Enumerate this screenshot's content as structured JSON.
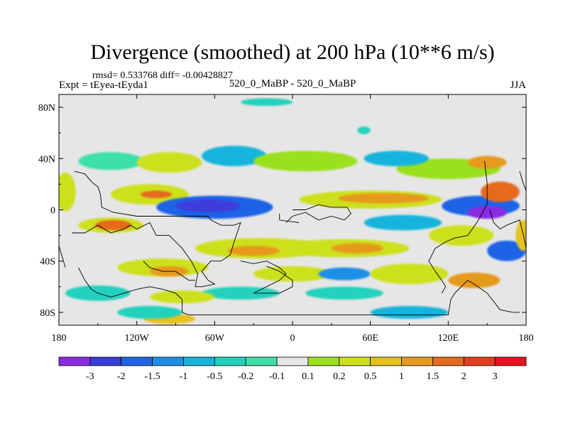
{
  "chart_data": {
    "type": "heatmap",
    "title": "Divergence (smoothed) at 200 hPa (10**6 m/s)",
    "stats_text": "rmsd= 0.533768 diff= -0.00428827",
    "left_label": "Expt = tEyea-tEyda1",
    "center_label": "520_0_MaBP - 520_0_MaBP",
    "right_label": "JJA",
    "x_ticks": [
      "180",
      "120W",
      "60W",
      "0",
      "60E",
      "120E",
      "180"
    ],
    "x_tick_values": [
      -180,
      -120,
      -60,
      0,
      60,
      120,
      180
    ],
    "y_ticks": [
      "80N",
      "40N",
      "0",
      "40S",
      "80S"
    ],
    "y_tick_values": [
      80,
      40,
      0,
      -40,
      -80
    ],
    "xlim": [
      -180,
      180
    ],
    "ylim": [
      -90,
      90
    ],
    "colorbar": {
      "labels": [
        "-3",
        "-2",
        "-1.5",
        "-1",
        "-0.5",
        "-0.2",
        "-0.1",
        "0.1",
        "0.2",
        "0.5",
        "1",
        "1.5",
        "2",
        "3"
      ],
      "colors": [
        "#8a2be2",
        "#3c3cdc",
        "#1f64e6",
        "#1e8fe6",
        "#17b4dc",
        "#20d2bc",
        "#3ee0a8",
        "#e6e6e6",
        "#9be01e",
        "#cde01e",
        "#e6c21e",
        "#e69a1e",
        "#e66a1e",
        "#e63c1e",
        "#e6141e"
      ]
    },
    "blobs": [
      {
        "lon": -150,
        "lat": -12,
        "rx": 35,
        "ry": 8,
        "level": 7
      },
      {
        "lon": -140,
        "lat": -12,
        "rx": 25,
        "ry": 6,
        "level": 9
      },
      {
        "lon": -138,
        "lat": -12,
        "rx": 14,
        "ry": 4,
        "level": 12
      },
      {
        "lon": -110,
        "lat": 12,
        "rx": 30,
        "ry": 8,
        "level": 9
      },
      {
        "lon": -105,
        "lat": 12,
        "rx": 12,
        "ry": 3,
        "level": 12
      },
      {
        "lon": -60,
        "lat": 2,
        "rx": 45,
        "ry": 9,
        "level": 2
      },
      {
        "lon": -65,
        "lat": 3,
        "rx": 25,
        "ry": 5,
        "level": 1
      },
      {
        "lon": -140,
        "lat": 38,
        "rx": 25,
        "ry": 7,
        "level": 6
      },
      {
        "lon": -95,
        "lat": 37,
        "rx": 25,
        "ry": 8,
        "level": 9
      },
      {
        "lon": -45,
        "lat": 42,
        "rx": 25,
        "ry": 8,
        "level": 4
      },
      {
        "lon": 10,
        "lat": 38,
        "rx": 40,
        "ry": 8,
        "level": 8
      },
      {
        "lon": 60,
        "lat": 8,
        "rx": 55,
        "ry": 7,
        "level": 9
      },
      {
        "lon": 70,
        "lat": 9,
        "rx": 35,
        "ry": 4,
        "level": 11
      },
      {
        "lon": 85,
        "lat": -10,
        "rx": 30,
        "ry": 6,
        "level": 4
      },
      {
        "lon": 145,
        "lat": 3,
        "rx": 30,
        "ry": 8,
        "level": 2
      },
      {
        "lon": 150,
        "lat": -2,
        "rx": 15,
        "ry": 5,
        "level": 0
      },
      {
        "lon": 160,
        "lat": 14,
        "rx": 15,
        "ry": 8,
        "level": 12
      },
      {
        "lon": 165,
        "lat": -32,
        "rx": 15,
        "ry": 8,
        "level": 2
      },
      {
        "lon": 120,
        "lat": 32,
        "rx": 40,
        "ry": 8,
        "level": 8
      },
      {
        "lon": 150,
        "lat": 37,
        "rx": 15,
        "ry": 5,
        "level": 11
      },
      {
        "lon": 80,
        "lat": 40,
        "rx": 25,
        "ry": 6,
        "level": 4
      },
      {
        "lon": -25,
        "lat": -30,
        "rx": 50,
        "ry": 8,
        "level": 9
      },
      {
        "lon": -30,
        "lat": -32,
        "rx": 20,
        "ry": 4,
        "level": 11
      },
      {
        "lon": 40,
        "lat": -30,
        "rx": 50,
        "ry": 7,
        "level": 9
      },
      {
        "lon": 50,
        "lat": -30,
        "rx": 20,
        "ry": 4,
        "level": 11
      },
      {
        "lon": 130,
        "lat": -20,
        "rx": 25,
        "ry": 8,
        "level": 9
      },
      {
        "lon": -100,
        "lat": -45,
        "rx": 35,
        "ry": 7,
        "level": 9
      },
      {
        "lon": -95,
        "lat": -48,
        "rx": 15,
        "ry": 4,
        "level": 11
      },
      {
        "lon": -150,
        "lat": -65,
        "rx": 25,
        "ry": 6,
        "level": 5
      },
      {
        "lon": 0,
        "lat": -50,
        "rx": 30,
        "ry": 6,
        "level": 9
      },
      {
        "lon": 40,
        "lat": -50,
        "rx": 20,
        "ry": 5,
        "level": 3
      },
      {
        "lon": 90,
        "lat": -50,
        "rx": 30,
        "ry": 8,
        "level": 9
      },
      {
        "lon": 140,
        "lat": -55,
        "rx": 20,
        "ry": 6,
        "level": 11
      },
      {
        "lon": -40,
        "lat": -65,
        "rx": 30,
        "ry": 5,
        "level": 5
      },
      {
        "lon": -85,
        "lat": -68,
        "rx": 25,
        "ry": 5,
        "level": 9
      },
      {
        "lon": 40,
        "lat": -65,
        "rx": 30,
        "ry": 5,
        "level": 5
      },
      {
        "lon": 90,
        "lat": -80,
        "rx": 30,
        "ry": 5,
        "level": 4
      },
      {
        "lon": -95,
        "lat": -85,
        "rx": 20,
        "ry": 4,
        "level": 10
      },
      {
        "lon": -110,
        "lat": -80,
        "rx": 25,
        "ry": 5,
        "level": 5
      },
      {
        "lon": 55,
        "lat": 62,
        "rx": 5,
        "ry": 3,
        "level": 5
      },
      {
        "lon": -20,
        "lat": 84,
        "rx": 20,
        "ry": 3,
        "level": 5
      },
      {
        "lon": -175,
        "lat": 14,
        "rx": 8,
        "ry": 15,
        "level": 9
      },
      {
        "lon": 178,
        "lat": -20,
        "rx": 6,
        "ry": 12,
        "level": 10
      }
    ],
    "coastlines": [
      [
        [
          -168,
          30
        ],
        [
          -160,
          28
        ],
        [
          -155,
          22
        ],
        [
          -150,
          18
        ],
        [
          -148,
          12
        ],
        [
          -147,
          2
        ],
        [
          -138,
          -2
        ],
        [
          -120,
          -5
        ],
        [
          -110,
          -5
        ],
        [
          -100,
          -5
        ],
        [
          -85,
          -5
        ],
        [
          -65,
          -5
        ],
        [
          -63,
          -8
        ],
        [
          -55,
          -12
        ],
        [
          -45,
          -12
        ],
        [
          -40,
          -10
        ],
        [
          -45,
          -25
        ],
        [
          -48,
          -35
        ],
        [
          -55,
          -40
        ],
        [
          -63,
          -40
        ],
        [
          -70,
          -48
        ],
        [
          -65,
          -55
        ],
        [
          -60,
          -58
        ],
        [
          -70,
          -60
        ],
        [
          -75,
          -60
        ],
        [
          -73,
          -50
        ],
        [
          -78,
          -40
        ],
        [
          -85,
          -30
        ],
        [
          -95,
          -20
        ],
        [
          -105,
          -20
        ],
        [
          -110,
          -10
        ],
        [
          -120,
          -15
        ],
        [
          -125,
          -12
        ],
        [
          -130,
          -15
        ],
        [
          -140,
          -18
        ],
        [
          -150,
          -12
        ],
        [
          -160,
          -18
        ],
        [
          -170,
          -18
        ]
      ],
      [
        [
          -115,
          -40
        ],
        [
          -110,
          -45
        ],
        [
          -100,
          -48
        ],
        [
          -90,
          -48
        ],
        [
          -80,
          -55
        ],
        [
          -75,
          -55
        ]
      ],
      [
        [
          -165,
          -45
        ],
        [
          -160,
          -55
        ],
        [
          -155,
          -62
        ],
        [
          -150,
          -65
        ],
        [
          -140,
          -68
        ],
        [
          -130,
          -65
        ],
        [
          -120,
          -62
        ],
        [
          -110,
          -60
        ],
        [
          -100,
          -62
        ],
        [
          -90,
          -65
        ],
        [
          -85,
          -70
        ],
        [
          -85,
          -80
        ],
        [
          -80,
          -82
        ],
        [
          -60,
          -82
        ],
        [
          -30,
          -82
        ],
        [
          0,
          -82
        ],
        [
          30,
          -82
        ],
        [
          60,
          -82
        ],
        [
          90,
          -82
        ],
        [
          120,
          -82
        ],
        [
          122,
          -70
        ],
        [
          125,
          -65
        ],
        [
          130,
          -60
        ],
        [
          135,
          -55
        ],
        [
          140,
          -58
        ],
        [
          150,
          -65
        ],
        [
          160,
          -78
        ],
        [
          170,
          -80
        ],
        [
          175,
          -80
        ]
      ],
      [
        [
          -40,
          -40
        ],
        [
          -30,
          -42
        ],
        [
          -20,
          -40
        ],
        [
          -10,
          -45
        ],
        [
          -5,
          -50
        ],
        [
          -10,
          -55
        ],
        [
          -20,
          -60
        ],
        [
          -30,
          -65
        ],
        [
          -10,
          -65
        ],
        [
          0,
          -60
        ],
        [
          0,
          -55
        ],
        [
          -10,
          -48
        ],
        [
          -20,
          -44
        ]
      ],
      [
        [
          -5,
          -10
        ],
        [
          0,
          -5
        ],
        [
          10,
          -2
        ],
        [
          20,
          -8
        ],
        [
          30,
          -5
        ],
        [
          40,
          -8
        ],
        [
          45,
          -3
        ],
        [
          42,
          2
        ],
        [
          30,
          2
        ],
        [
          20,
          4
        ],
        [
          10,
          0
        ],
        [
          0,
          0
        ]
      ],
      [
        [
          -10,
          -3
        ],
        [
          -10,
          -8
        ],
        [
          5,
          -10
        ]
      ],
      [
        [
          148,
          38
        ],
        [
          150,
          20
        ],
        [
          150,
          5
        ],
        [
          145,
          -5
        ],
        [
          142,
          -10
        ],
        [
          135,
          -20
        ],
        [
          125,
          -22
        ],
        [
          118,
          -25
        ],
        [
          110,
          -30
        ],
        [
          105,
          -40
        ],
        [
          110,
          -48
        ],
        [
          115,
          -55
        ],
        [
          118,
          -60
        ],
        [
          115,
          -65
        ]
      ],
      [
        [
          152,
          0
        ],
        [
          155,
          -10
        ],
        [
          160,
          -15
        ],
        [
          165,
          -12
        ],
        [
          170,
          -10
        ],
        [
          175,
          -8
        ],
        [
          178,
          -20
        ],
        [
          180,
          -30
        ]
      ],
      [
        [
          175,
          30
        ],
        [
          178,
          20
        ],
        [
          180,
          15
        ]
      ],
      [
        [
          -175,
          -45
        ],
        [
          -178,
          -35
        ],
        [
          -180,
          -28
        ]
      ]
    ]
  }
}
